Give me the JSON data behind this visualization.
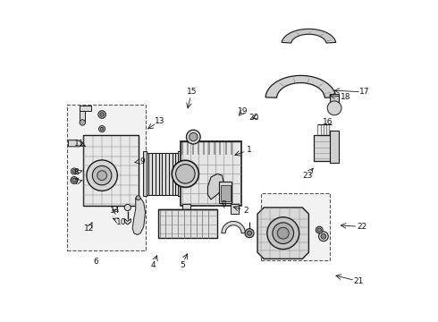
{
  "bg_color": "#ffffff",
  "line_color": "#1a1a1a",
  "gray_dark": "#888888",
  "gray_mid": "#aaaaaa",
  "gray_light": "#cccccc",
  "gray_fill": "#d8d8d8",
  "box_bg": "#f0f0f0",
  "figsize": [
    4.9,
    3.6
  ],
  "dpi": 100,
  "labels": [
    [
      1,
      0.595,
      0.535,
      0.54,
      0.515
    ],
    [
      2,
      0.585,
      0.345,
      0.535,
      0.36
    ],
    [
      3,
      0.515,
      0.365,
      0.5,
      0.375
    ],
    [
      4,
      0.295,
      0.175,
      0.31,
      0.215
    ],
    [
      5,
      0.385,
      0.175,
      0.405,
      0.22
    ],
    [
      6,
      0.115,
      0.185,
      null,
      null
    ],
    [
      7,
      0.055,
      0.435,
      0.075,
      0.44
    ],
    [
      8,
      0.055,
      0.465,
      0.075,
      0.47
    ],
    [
      9,
      0.26,
      0.5,
      0.235,
      0.495
    ],
    [
      10,
      0.195,
      0.31,
      0.16,
      0.325
    ],
    [
      11,
      0.065,
      0.555,
      0.085,
      0.545
    ],
    [
      12,
      0.095,
      0.29,
      0.105,
      0.31
    ],
    [
      13,
      0.315,
      0.625,
      0.27,
      0.595
    ],
    [
      14,
      0.175,
      0.345,
      0.16,
      0.355
    ],
    [
      15,
      0.415,
      0.715,
      0.4,
      0.655
    ],
    [
      16,
      0.84,
      0.62,
      null,
      null
    ],
    [
      17,
      0.955,
      0.715,
      0.85,
      0.72
    ],
    [
      18,
      0.895,
      0.7,
      0.835,
      0.705
    ],
    [
      19,
      0.575,
      0.655,
      0.555,
      0.635
    ],
    [
      20,
      0.61,
      0.635,
      0.595,
      0.63
    ],
    [
      21,
      0.935,
      0.125,
      0.855,
      0.145
    ],
    [
      22,
      0.945,
      0.295,
      0.87,
      0.3
    ],
    [
      23,
      0.775,
      0.455,
      0.8,
      0.485
    ]
  ]
}
